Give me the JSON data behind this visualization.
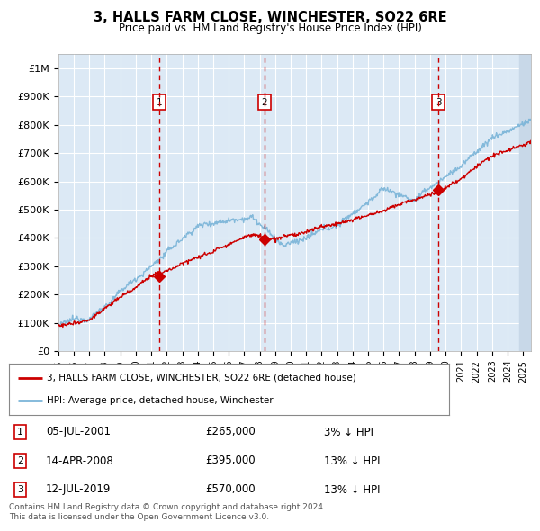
{
  "title": "3, HALLS FARM CLOSE, WINCHESTER, SO22 6RE",
  "subtitle": "Price paid vs. HM Land Registry's House Price Index (HPI)",
  "background_color": "#ffffff",
  "plot_bg_color": "#dce9f5",
  "ylim": [
    0,
    1050000
  ],
  "yticks": [
    0,
    100000,
    200000,
    300000,
    400000,
    500000,
    600000,
    700000,
    800000,
    900000,
    1000000
  ],
  "ytick_labels": [
    "£0",
    "£100K",
    "£200K",
    "£300K",
    "£400K",
    "£500K",
    "£600K",
    "£700K",
    "£800K",
    "£900K",
    "£1M"
  ],
  "xlim_start": 1995.0,
  "xlim_end": 2025.5,
  "hpi_color": "#7ab4d8",
  "price_color": "#cc0000",
  "dashed_line_color": "#cc0000",
  "sale_dates": [
    2001.54,
    2008.29,
    2019.54
  ],
  "sale_prices": [
    265000,
    395000,
    570000
  ],
  "sale_labels": [
    "1",
    "2",
    "3"
  ],
  "legend_line1": "3, HALLS FARM CLOSE, WINCHESTER, SO22 6RE (detached house)",
  "legend_line2": "HPI: Average price, detached house, Winchester",
  "table_entries": [
    {
      "label": "1",
      "date": "05-JUL-2001",
      "price": "£265,000",
      "hpi": "3% ↓ HPI"
    },
    {
      "label": "2",
      "date": "14-APR-2008",
      "price": "£395,000",
      "hpi": "13% ↓ HPI"
    },
    {
      "label": "3",
      "date": "12-JUL-2019",
      "price": "£570,000",
      "hpi": "13% ↓ HPI"
    }
  ],
  "footer": "Contains HM Land Registry data © Crown copyright and database right 2024.\nThis data is licensed under the Open Government Licence v3.0."
}
